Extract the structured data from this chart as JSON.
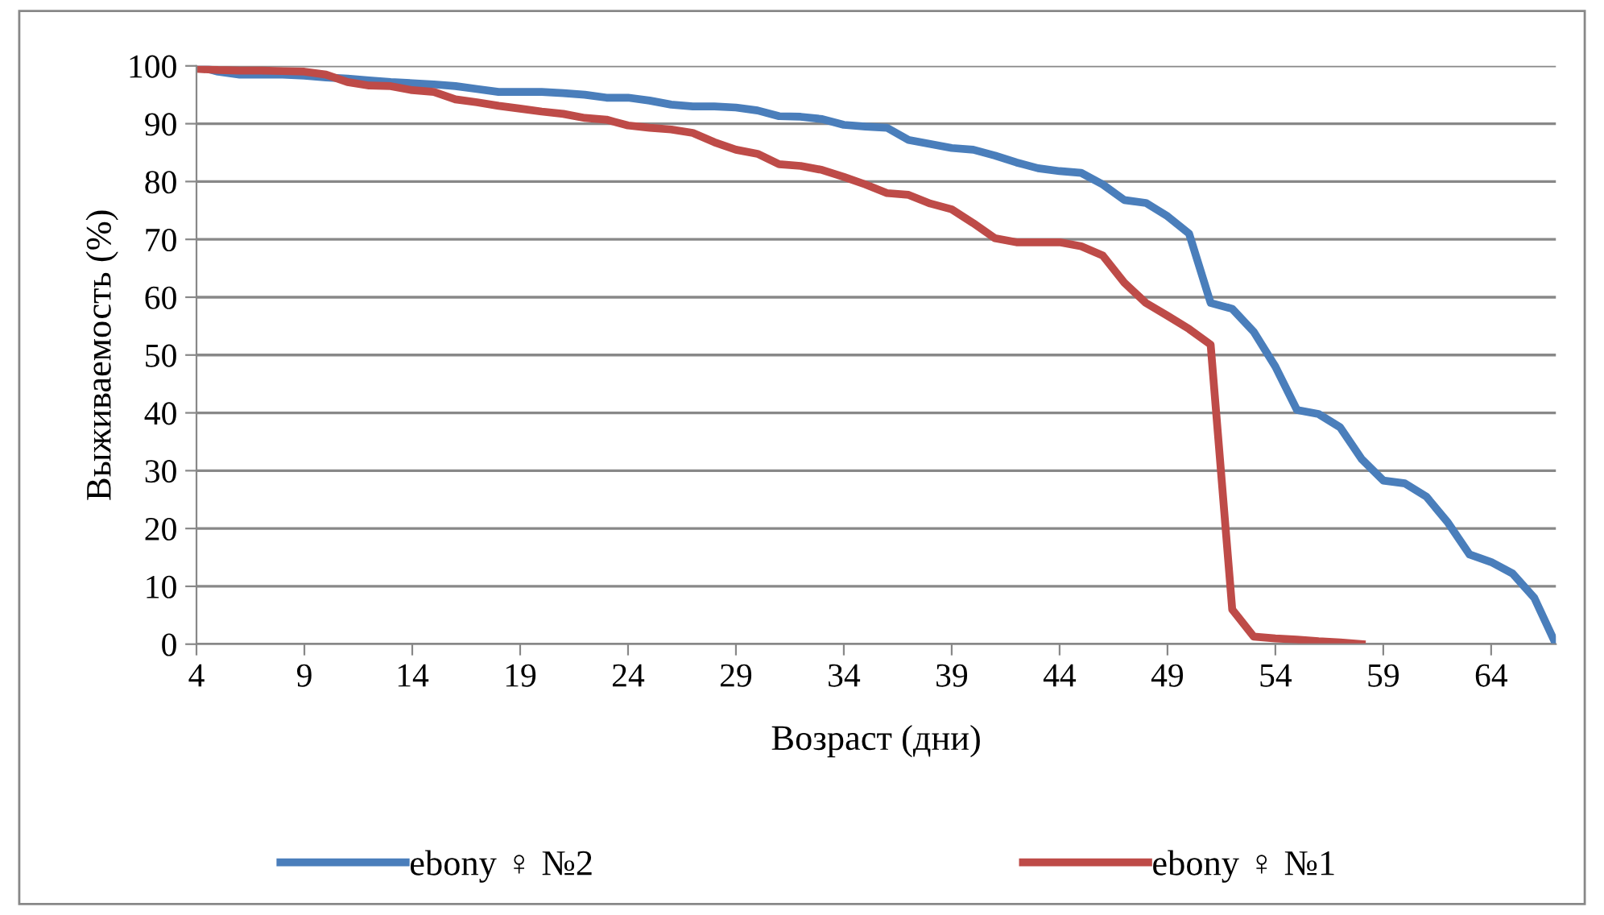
{
  "chart_data": {
    "type": "line",
    "xlabel": "Возраст (дни)",
    "ylabel": "Выживаемость (%)",
    "x": [
      4,
      5,
      6,
      7,
      8,
      9,
      10,
      11,
      12,
      13,
      14,
      15,
      16,
      17,
      18,
      19,
      20,
      21,
      22,
      23,
      24,
      25,
      26,
      27,
      28,
      29,
      30,
      31,
      32,
      33,
      34,
      35,
      36,
      37,
      38,
      39,
      40,
      41,
      42,
      43,
      44,
      45,
      46,
      47,
      48,
      49,
      50,
      51,
      52,
      53,
      54,
      55,
      56,
      57,
      58,
      59,
      60,
      61,
      62,
      63,
      64,
      65,
      66,
      67
    ],
    "series": [
      {
        "name": "ebony ♀ №2",
        "color": "#4a7ebb",
        "values": [
          100,
          99,
          98.5,
          98.5,
          98.5,
          98.3,
          98,
          97.8,
          97.5,
          97.2,
          97,
          96.8,
          96.5,
          96,
          95.5,
          95.5,
          95.5,
          95.3,
          95,
          94.5,
          94.5,
          94,
          93.3,
          93,
          93,
          92.8,
          92.3,
          91.3,
          91.2,
          90.8,
          89.8,
          89.5,
          89.3,
          87.2,
          86.5,
          85.8,
          85.5,
          84.5,
          83.3,
          82.3,
          81.8,
          81.5,
          79.5,
          76.8,
          76.3,
          74,
          71,
          59,
          58,
          54,
          48,
          40.5,
          39.8,
          37.5,
          32,
          28.3,
          27.8,
          25.5,
          21,
          15.5,
          14.2,
          12.2,
          8,
          0
        ]
      },
      {
        "name": "ebony ♀ №1",
        "color": "#be4b48",
        "values": [
          99.5,
          99.3,
          99.2,
          99.2,
          99.1,
          99,
          98.5,
          97.2,
          96.6,
          96.5,
          95.8,
          95.5,
          94.2,
          93.7,
          93.1,
          92.6,
          92.1,
          91.7,
          91,
          90.7,
          89.7,
          89.3,
          89,
          88.4,
          86.8,
          85.5,
          84.8,
          83,
          82.7,
          82,
          80.8,
          79.5,
          78,
          77.7,
          76.2,
          75.2,
          72.8,
          70.2,
          69.5,
          69.5,
          69.5,
          68.8,
          67.2,
          62.5,
          59,
          56.8,
          54.5,
          51.8,
          6,
          1.3,
          1,
          0.8,
          0.5,
          0.3,
          0,
          null,
          null,
          null,
          null,
          null,
          null,
          null,
          null,
          null
        ]
      }
    ],
    "xlim": [
      4,
      67
    ],
    "xticks": [
      4,
      9,
      14,
      19,
      24,
      29,
      34,
      39,
      44,
      49,
      54,
      59,
      64
    ],
    "ylim": [
      0,
      100
    ],
    "yticks": [
      0,
      10,
      20,
      30,
      40,
      50,
      60,
      70,
      80,
      90,
      100
    ],
    "grid": "y",
    "legend": "bottom",
    "marker": "none",
    "line_style": "solid"
  }
}
